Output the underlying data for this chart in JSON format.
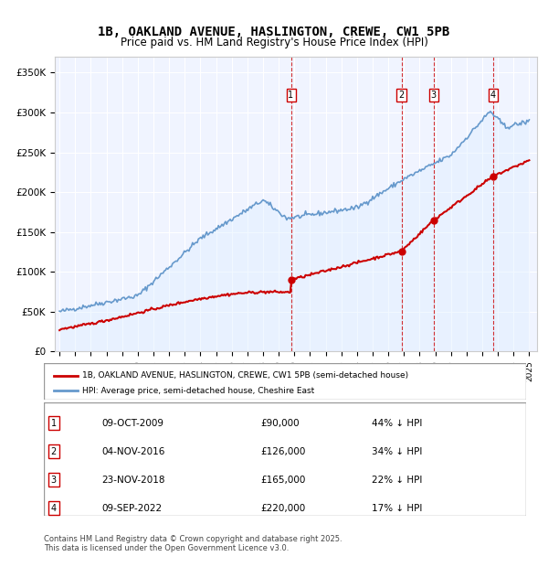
{
  "title": "1B, OAKLAND AVENUE, HASLINGTON, CREWE, CW1 5PB",
  "subtitle": "Price paid vs. HM Land Registry's House Price Index (HPI)",
  "ylabel_ticks": [
    "£0",
    "£50K",
    "£100K",
    "£150K",
    "£200K",
    "£250K",
    "£300K",
    "£350K"
  ],
  "ytick_values": [
    0,
    50000,
    100000,
    150000,
    200000,
    250000,
    300000,
    350000
  ],
  "ylim": [
    0,
    370000
  ],
  "xlim_start": 1995,
  "xlim_end": 2025.5,
  "sale_color": "#cc0000",
  "hpi_color": "#6699cc",
  "hpi_fill": "#ddeeff",
  "background_color": "#f0f4ff",
  "transactions": [
    {
      "date": 2009.78,
      "price": 90000,
      "label": "1"
    },
    {
      "date": 2016.84,
      "price": 126000,
      "label": "2"
    },
    {
      "date": 2018.9,
      "price": 165000,
      "label": "3"
    },
    {
      "date": 2022.69,
      "price": 220000,
      "label": "4"
    }
  ],
  "table_rows": [
    {
      "num": "1",
      "date": "09-OCT-2009",
      "price": "£90,000",
      "pct": "44% ↓ HPI"
    },
    {
      "num": "2",
      "date": "04-NOV-2016",
      "price": "£126,000",
      "pct": "34% ↓ HPI"
    },
    {
      "num": "3",
      "date": "23-NOV-2018",
      "price": "£165,000",
      "pct": "22% ↓ HPI"
    },
    {
      "num": "4",
      "date": "09-SEP-2022",
      "price": "£220,000",
      "pct": "17% ↓ HPI"
    }
  ],
  "footer": "Contains HM Land Registry data © Crown copyright and database right 2025.\nThis data is licensed under the Open Government Licence v3.0.",
  "legend_label_red": "1B, OAKLAND AVENUE, HASLINGTON, CREWE, CW1 5PB (semi-detached house)",
  "legend_label_blue": "HPI: Average price, semi-detached house, Cheshire East"
}
